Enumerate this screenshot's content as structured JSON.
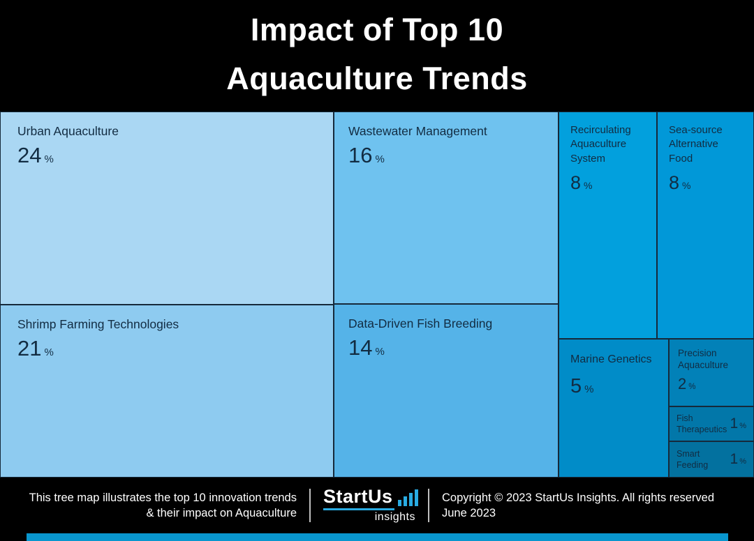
{
  "title": {
    "line1": "Impact of Top 10",
    "line2": "Aquaculture Trends"
  },
  "chart_data": {
    "type": "treemap",
    "title": "Impact of Top 10 Aquaculture Trends",
    "unit": "%",
    "items": [
      {
        "label": "Urban Aquaculture",
        "value": 24,
        "color": "#aad7f3"
      },
      {
        "label": "Shrimp Farming Technologies",
        "value": 21,
        "color": "#8ecbf0"
      },
      {
        "label": "Wastewater Management",
        "value": 16,
        "color": "#6fc2ef"
      },
      {
        "label": "Data-Driven Fish Breeding",
        "value": 14,
        "color": "#55b3e8"
      },
      {
        "label": "Recirculating Aquaculture System",
        "value": 8,
        "color": "#02a0dd"
      },
      {
        "label": "Sea-source Alternative Food",
        "value": 8,
        "color": "#0198d8"
      },
      {
        "label": "Marine Genetics",
        "value": 5,
        "color": "#018cc8"
      },
      {
        "label": "Precision Aquaculture",
        "value": 2,
        "color": "#0281b8"
      },
      {
        "label": "Fish Therapeutics",
        "value": 1,
        "color": "#0277a9"
      },
      {
        "label": "Smart Feeding",
        "value": 1,
        "color": "#03719f"
      }
    ]
  },
  "footer": {
    "description_line1": "This tree map illustrates the top 10 innovation trends",
    "description_line2": "& their impact on Aquaculture",
    "logo": {
      "name": "StartUs",
      "sub": "insights"
    },
    "copyright_line1": "Copyright © 2023 StartUs Insights. All rights reserved",
    "copyright_line2": "June 2023",
    "accent_color": "#0996ce"
  }
}
